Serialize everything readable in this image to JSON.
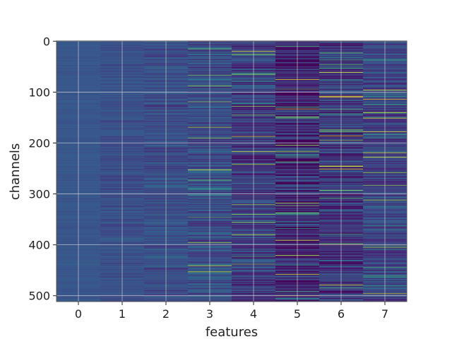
{
  "chart_data": {
    "type": "heatmap",
    "title": "",
    "xlabel": "features",
    "ylabel": "channels",
    "x_categories": [
      "0",
      "1",
      "2",
      "3",
      "4",
      "5",
      "6",
      "7"
    ],
    "y_ticks": [
      0,
      100,
      200,
      300,
      400,
      500
    ],
    "y_range": [
      0,
      511
    ],
    "n_rows": 512,
    "colormap": "viridis",
    "grid": true,
    "column_mean_level": [
      0.27,
      0.25,
      0.25,
      0.25,
      0.19,
      0.12,
      0.19,
      0.22
    ],
    "column_spread": [
      0.03,
      0.06,
      0.09,
      0.13,
      0.15,
      0.2,
      0.18,
      0.13
    ]
  }
}
